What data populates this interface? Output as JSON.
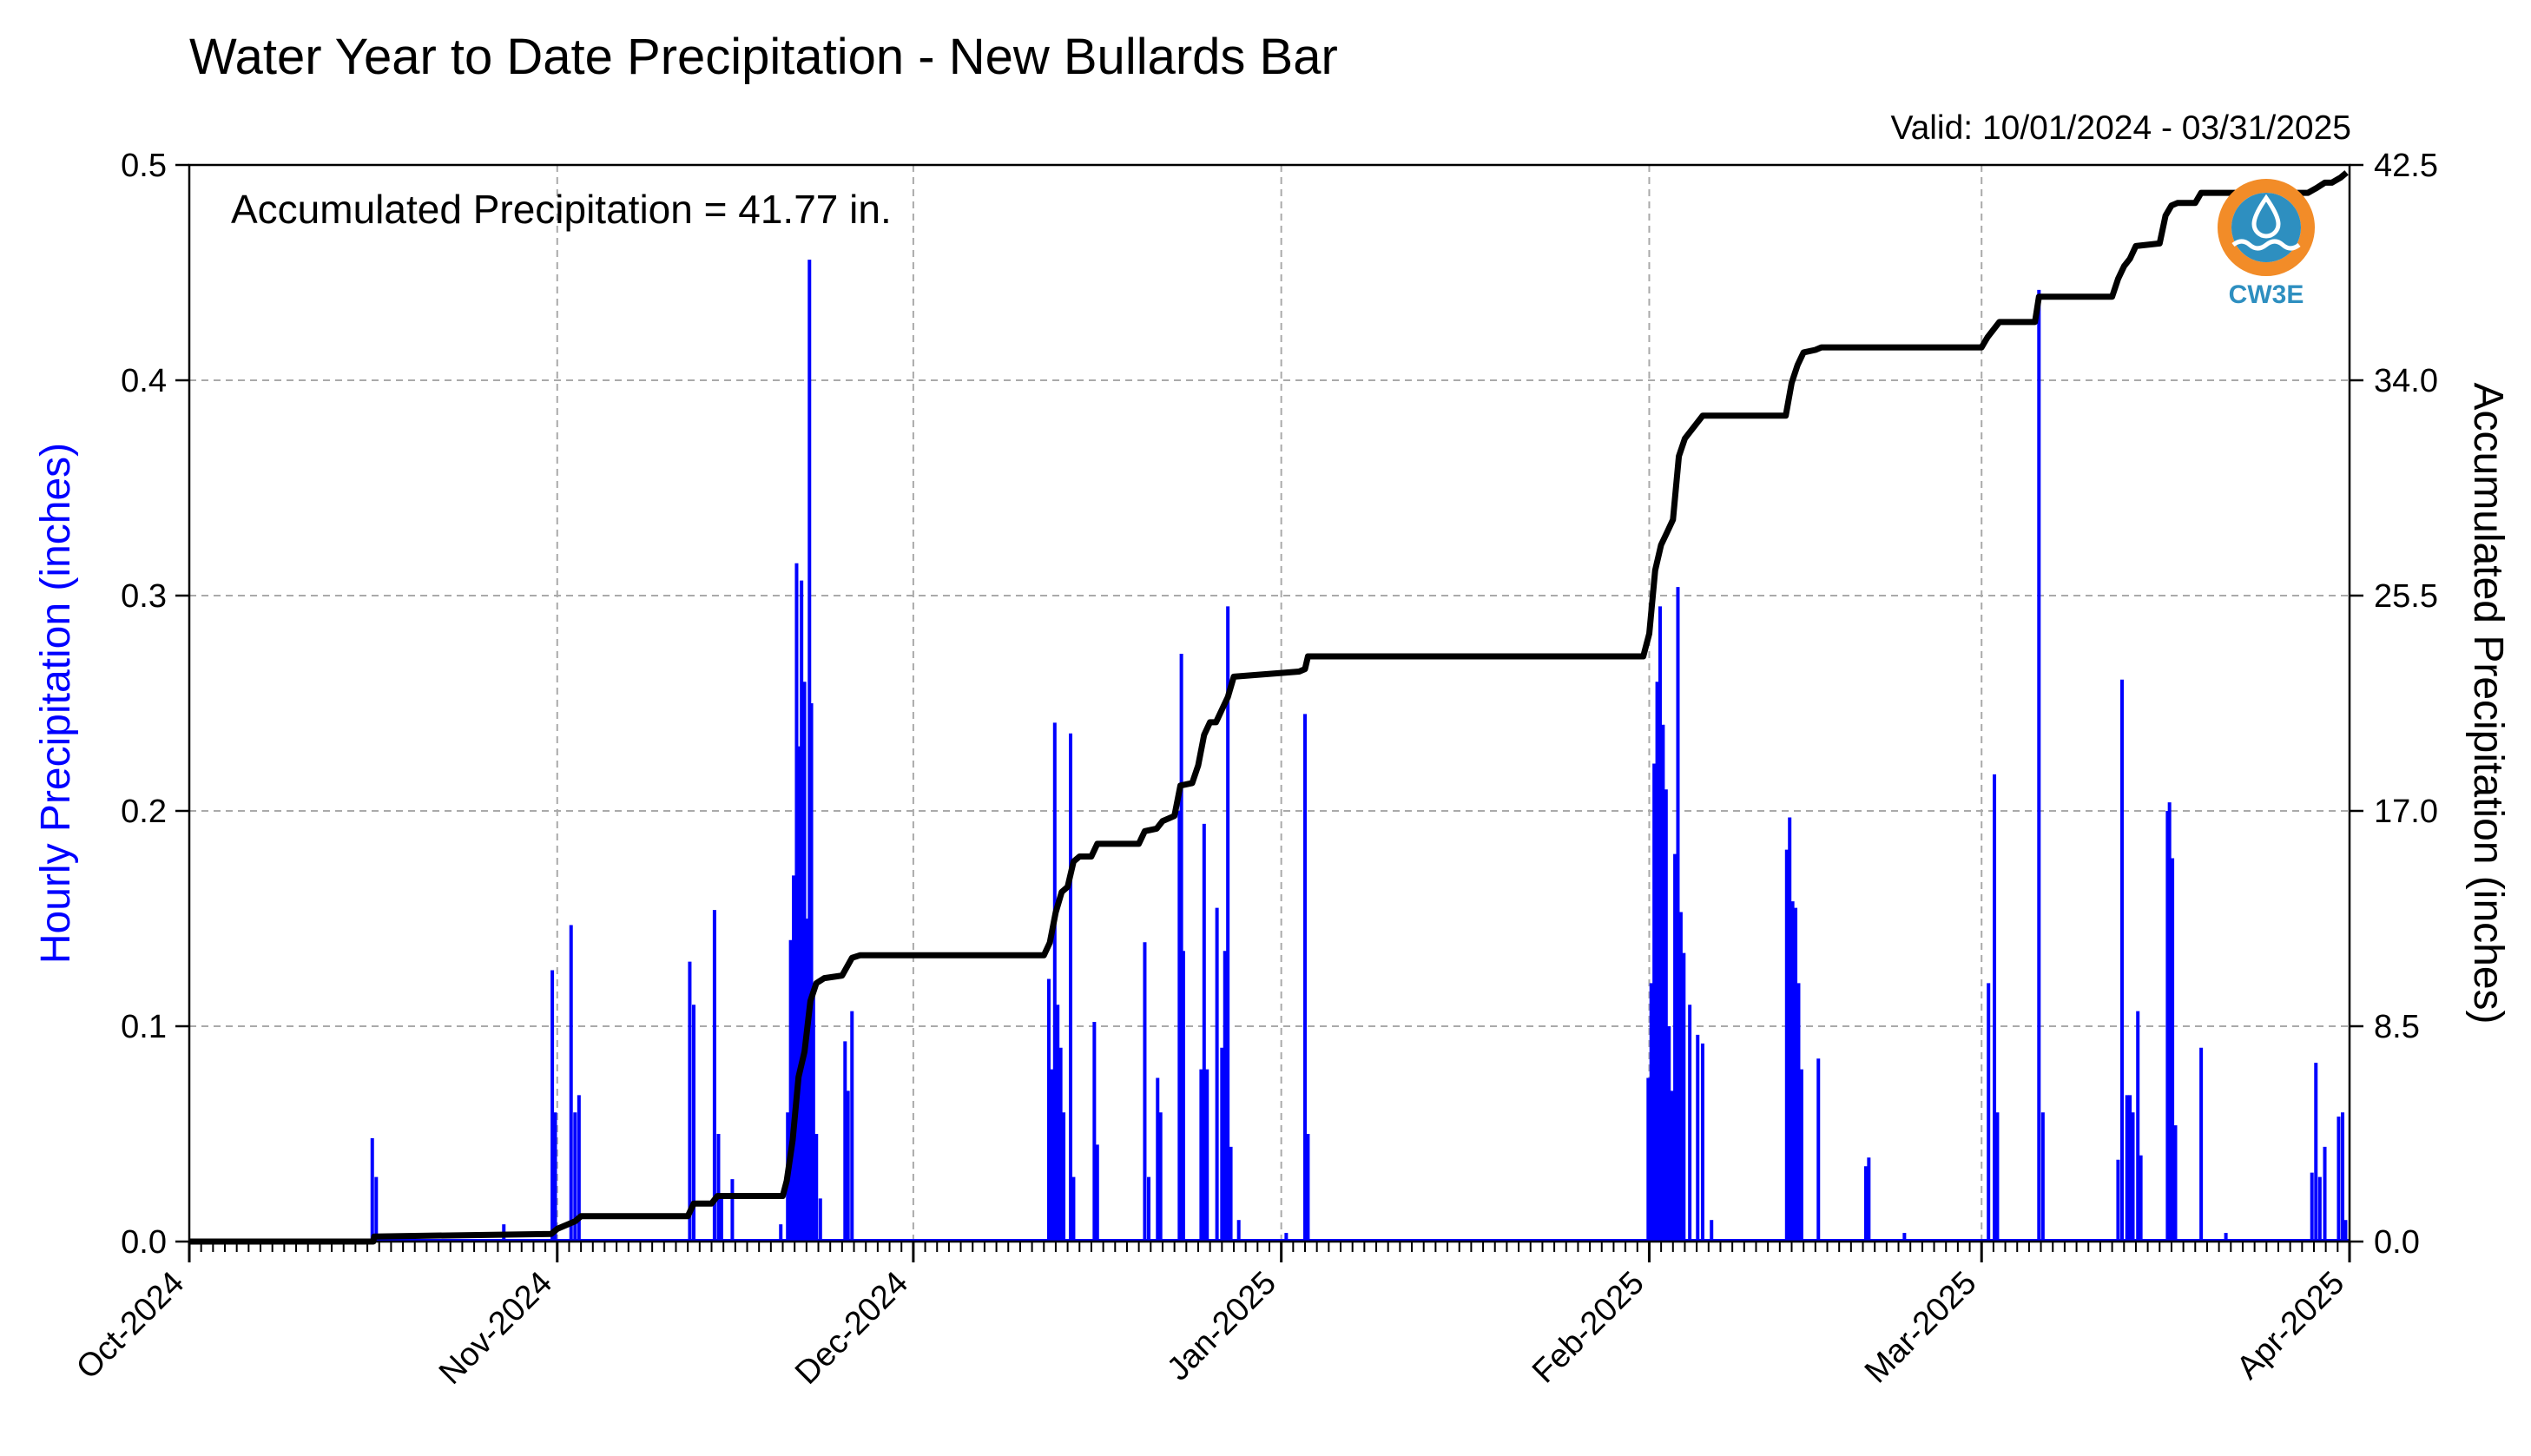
{
  "chart_data": {
    "type": "bar+line",
    "title": "Water Year to Date Precipitation - New Bullards Bar",
    "subtitle": "Valid: 10/01/2024 - 03/31/2025",
    "annotation": "Accumulated Precipitation = 41.77 in.",
    "ylabel_left": "Hourly Precipitation (inches)",
    "ylabel_right": "Accumulated Precipitation (inches)",
    "logo_text": "CW3E",
    "x_range": [
      "2024-10-01",
      "2025-04-01"
    ],
    "x_ticks": [
      {
        "date": "2024-10-01",
        "label": "Oct-2024"
      },
      {
        "date": "2024-11-01",
        "label": "Nov-2024"
      },
      {
        "date": "2024-12-01",
        "label": "Dec-2024"
      },
      {
        "date": "2025-01-01",
        "label": "Jan-2025"
      },
      {
        "date": "2025-02-01",
        "label": "Feb-2025"
      },
      {
        "date": "2025-03-01",
        "label": "Mar-2025"
      },
      {
        "date": "2025-04-01",
        "label": "Apr-2025"
      }
    ],
    "ylim_left": [
      0,
      0.5
    ],
    "yticks_left": [
      {
        "value": 0.0,
        "label": "0.0"
      },
      {
        "value": 0.1,
        "label": "0.1"
      },
      {
        "value": 0.2,
        "label": "0.2"
      },
      {
        "value": 0.3,
        "label": "0.3"
      },
      {
        "value": 0.4,
        "label": "0.4"
      },
      {
        "value": 0.5,
        "label": "0.5"
      }
    ],
    "ylim_right": [
      0,
      42.5
    ],
    "yticks_right": [
      {
        "value": 0.0,
        "label": "0.0"
      },
      {
        "value": 8.5,
        "label": "8.5"
      },
      {
        "value": 17.0,
        "label": "17.0"
      },
      {
        "value": 25.5,
        "label": "25.5"
      },
      {
        "value": 34.0,
        "label": "34.0"
      },
      {
        "value": 42.5,
        "label": "42.5"
      }
    ],
    "grid": true,
    "colors": {
      "hourly": "#0000ff",
      "accumulated": "#000000",
      "grid": "#aaaaaa",
      "logo_orange": "#f28c28",
      "logo_blue": "#2e8fc0"
    },
    "hourly_series": {
      "name": "Hourly Precipitation",
      "points": [
        [
          "2024-10-16T10:00",
          0.048
        ],
        [
          "2024-10-16T18:00",
          0.03
        ],
        [
          "2024-10-27T12:00",
          0.008
        ],
        [
          "2024-10-31T14:00",
          0.126
        ],
        [
          "2024-10-31T20:00",
          0.06
        ],
        [
          "2024-11-02T04:00",
          0.147
        ],
        [
          "2024-11-02T12:00",
          0.06
        ],
        [
          "2024-11-02T20:00",
          0.068
        ],
        [
          "2024-11-12T04:00",
          0.13
        ],
        [
          "2024-11-12T12:00",
          0.11
        ],
        [
          "2024-11-14T06:00",
          0.154
        ],
        [
          "2024-11-14T14:00",
          0.05
        ],
        [
          "2024-11-14T20:00",
          0.02
        ],
        [
          "2024-11-15T18:00",
          0.029
        ],
        [
          "2024-11-19T20:00",
          0.008
        ],
        [
          "2024-11-20T10:00",
          0.06
        ],
        [
          "2024-11-20T16:00",
          0.14
        ],
        [
          "2024-11-20T22:00",
          0.17
        ],
        [
          "2024-11-21T04:00",
          0.315
        ],
        [
          "2024-11-21T10:00",
          0.23
        ],
        [
          "2024-11-21T14:00",
          0.307
        ],
        [
          "2024-11-21T20:00",
          0.26
        ],
        [
          "2024-11-22T02:00",
          0.15
        ],
        [
          "2024-11-22T06:00",
          0.456
        ],
        [
          "2024-11-22T10:00",
          0.25
        ],
        [
          "2024-11-22T14:00",
          0.12
        ],
        [
          "2024-11-22T20:00",
          0.05
        ],
        [
          "2024-11-23T04:00",
          0.02
        ],
        [
          "2024-11-25T06:00",
          0.093
        ],
        [
          "2024-11-25T12:00",
          0.07
        ],
        [
          "2024-11-25T20:00",
          0.107
        ],
        [
          "2024-12-12T10:00",
          0.122
        ],
        [
          "2024-12-12T16:00",
          0.08
        ],
        [
          "2024-12-12T22:00",
          0.241
        ],
        [
          "2024-12-13T04:00",
          0.11
        ],
        [
          "2024-12-13T10:00",
          0.09
        ],
        [
          "2024-12-13T16:00",
          0.06
        ],
        [
          "2024-12-14T06:00",
          0.236
        ],
        [
          "2024-12-14T12:00",
          0.03
        ],
        [
          "2024-12-16T06:00",
          0.102
        ],
        [
          "2024-12-16T12:00",
          0.045
        ],
        [
          "2024-12-20T12:00",
          0.139
        ],
        [
          "2024-12-20T20:00",
          0.03
        ],
        [
          "2024-12-21T14:00",
          0.076
        ],
        [
          "2024-12-21T20:00",
          0.06
        ],
        [
          "2024-12-23T10:00",
          0.2
        ],
        [
          "2024-12-23T14:00",
          0.273
        ],
        [
          "2024-12-23T18:00",
          0.135
        ],
        [
          "2024-12-25T06:00",
          0.08
        ],
        [
          "2024-12-25T12:00",
          0.194
        ],
        [
          "2024-12-25T18:00",
          0.08
        ],
        [
          "2024-12-26T14:00",
          0.155
        ],
        [
          "2024-12-27T00:00",
          0.09
        ],
        [
          "2024-12-27T06:00",
          0.135
        ],
        [
          "2024-12-27T12:00",
          0.295
        ],
        [
          "2024-12-27T18:00",
          0.044
        ],
        [
          "2024-12-28T10:00",
          0.01
        ],
        [
          "2025-01-01T10:00",
          0.004
        ],
        [
          "2025-01-03T00:00",
          0.245
        ],
        [
          "2025-01-03T06:00",
          0.05
        ],
        [
          "2025-01-31T22:00",
          0.076
        ],
        [
          "2025-02-01T04:00",
          0.12
        ],
        [
          "2025-02-01T10:00",
          0.222
        ],
        [
          "2025-02-01T16:00",
          0.26
        ],
        [
          "2025-02-01T22:00",
          0.295
        ],
        [
          "2025-02-02T04:00",
          0.24
        ],
        [
          "2025-02-02T10:00",
          0.21
        ],
        [
          "2025-02-02T16:00",
          0.1
        ],
        [
          "2025-02-02T22:00",
          0.07
        ],
        [
          "2025-02-03T04:00",
          0.18
        ],
        [
          "2025-02-03T10:00",
          0.304
        ],
        [
          "2025-02-03T16:00",
          0.153
        ],
        [
          "2025-02-03T22:00",
          0.134
        ],
        [
          "2025-02-04T10:00",
          0.11
        ],
        [
          "2025-02-05T02:00",
          0.096
        ],
        [
          "2025-02-05T12:00",
          0.092
        ],
        [
          "2025-02-06T06:00",
          0.01
        ],
        [
          "2025-02-12T14:00",
          0.182
        ],
        [
          "2025-02-12T20:00",
          0.197
        ],
        [
          "2025-02-13T02:00",
          0.158
        ],
        [
          "2025-02-13T08:00",
          0.155
        ],
        [
          "2025-02-13T14:00",
          0.12
        ],
        [
          "2025-02-13T20:00",
          0.08
        ],
        [
          "2025-02-15T06:00",
          0.085
        ],
        [
          "2025-02-19T06:00",
          0.035
        ],
        [
          "2025-02-19T12:00",
          0.039
        ],
        [
          "2025-02-22T12:00",
          0.004
        ],
        [
          "2025-03-01T14:00",
          0.12
        ],
        [
          "2025-03-02T02:00",
          0.217
        ],
        [
          "2025-03-02T08:00",
          0.06
        ],
        [
          "2025-03-05T20:00",
          0.442
        ],
        [
          "2025-03-06T04:00",
          0.06
        ],
        [
          "2025-03-12T12:00",
          0.038
        ],
        [
          "2025-03-12T20:00",
          0.261
        ],
        [
          "2025-03-13T06:00",
          0.068
        ],
        [
          "2025-03-13T12:00",
          0.068
        ],
        [
          "2025-03-13T18:00",
          0.06
        ],
        [
          "2025-03-14T04:00",
          0.107
        ],
        [
          "2025-03-14T10:00",
          0.04
        ],
        [
          "2025-03-16T16:00",
          0.2
        ],
        [
          "2025-03-16T20:00",
          0.204
        ],
        [
          "2025-03-17T02:00",
          0.178
        ],
        [
          "2025-03-17T08:00",
          0.054
        ],
        [
          "2025-03-19T12:00",
          0.09
        ],
        [
          "2025-03-21T14:00",
          0.004
        ],
        [
          "2025-03-28T20:00",
          0.032
        ],
        [
          "2025-03-29T04:00",
          0.083
        ],
        [
          "2025-03-29T12:00",
          0.03
        ],
        [
          "2025-03-29T22:00",
          0.044
        ],
        [
          "2025-03-31T02:00",
          0.058
        ],
        [
          "2025-03-31T10:00",
          0.06
        ],
        [
          "2025-03-31T16:00",
          0.01
        ]
      ]
    },
    "accumulated_series": {
      "name": "Accumulated Precipitation",
      "points": [
        [
          "2024-10-01T00:00",
          0.0
        ],
        [
          "2024-10-16T12:00",
          0.0
        ],
        [
          "2024-10-16T14:00",
          0.2
        ],
        [
          "2024-10-31T12:00",
          0.3
        ],
        [
          "2024-11-01T00:00",
          0.5
        ],
        [
          "2024-11-02T12:00",
          0.8
        ],
        [
          "2024-11-03T00:00",
          1.0
        ],
        [
          "2024-11-12T00:00",
          1.0
        ],
        [
          "2024-11-12T12:00",
          1.5
        ],
        [
          "2024-11-14T00:00",
          1.5
        ],
        [
          "2024-11-14T12:00",
          1.8
        ],
        [
          "2024-11-20T00:00",
          1.8
        ],
        [
          "2024-11-20T08:00",
          2.4
        ],
        [
          "2024-11-20T20:00",
          4.0
        ],
        [
          "2024-11-21T08:00",
          6.5
        ],
        [
          "2024-11-21T20:00",
          7.5
        ],
        [
          "2024-11-22T08:00",
          9.5
        ],
        [
          "2024-11-22T20:00",
          10.2
        ],
        [
          "2024-11-23T12:00",
          10.4
        ],
        [
          "2024-11-25T00:00",
          10.5
        ],
        [
          "2024-11-25T20:00",
          11.2
        ],
        [
          "2024-11-26T12:00",
          11.3
        ],
        [
          "2024-12-12T00:00",
          11.3
        ],
        [
          "2024-12-12T12:00",
          11.8
        ],
        [
          "2024-12-13T00:00",
          13.0
        ],
        [
          "2024-12-13T12:00",
          13.8
        ],
        [
          "2024-12-14T00:00",
          14.0
        ],
        [
          "2024-12-14T12:00",
          15.0
        ],
        [
          "2024-12-15T00:00",
          15.2
        ],
        [
          "2024-12-16T00:00",
          15.2
        ],
        [
          "2024-12-16T12:00",
          15.7
        ],
        [
          "2024-12-20T00:00",
          15.7
        ],
        [
          "2024-12-20T12:00",
          16.2
        ],
        [
          "2024-12-21T12:00",
          16.3
        ],
        [
          "2024-12-22T00:00",
          16.6
        ],
        [
          "2024-12-23T00:00",
          16.8
        ],
        [
          "2024-12-23T12:00",
          18.0
        ],
        [
          "2024-12-24T12:00",
          18.1
        ],
        [
          "2024-12-25T00:00",
          18.8
        ],
        [
          "2024-12-25T12:00",
          20.0
        ],
        [
          "2024-12-26T00:00",
          20.5
        ],
        [
          "2024-12-26T12:00",
          20.5
        ],
        [
          "2024-12-27T00:00",
          21.0
        ],
        [
          "2024-12-27T12:00",
          21.5
        ],
        [
          "2024-12-28T00:00",
          22.3
        ],
        [
          "2025-01-02T12:00",
          22.5
        ],
        [
          "2025-01-03T00:00",
          22.6
        ],
        [
          "2025-01-03T06:00",
          23.1
        ],
        [
          "2025-01-31T12:00",
          23.1
        ],
        [
          "2025-02-01T00:00",
          24.0
        ],
        [
          "2025-02-01T12:00",
          26.5
        ],
        [
          "2025-02-02T00:00",
          27.5
        ],
        [
          "2025-02-02T12:00",
          28.0
        ],
        [
          "2025-02-03T00:00",
          28.5
        ],
        [
          "2025-02-03T12:00",
          31.0
        ],
        [
          "2025-02-04T00:00",
          31.7
        ],
        [
          "2025-02-04T12:00",
          32.0
        ],
        [
          "2025-02-05T12:00",
          32.6
        ],
        [
          "2025-02-12T12:00",
          32.6
        ],
        [
          "2025-02-13T00:00",
          33.9
        ],
        [
          "2025-02-13T12:00",
          34.6
        ],
        [
          "2025-02-14T00:00",
          35.1
        ],
        [
          "2025-02-15T00:00",
          35.2
        ],
        [
          "2025-02-15T12:00",
          35.3
        ],
        [
          "2025-03-01T00:00",
          35.3
        ],
        [
          "2025-03-01T12:00",
          35.7
        ],
        [
          "2025-03-02T12:00",
          36.3
        ],
        [
          "2025-03-05T12:00",
          36.3
        ],
        [
          "2025-03-05T20:00",
          37.3
        ],
        [
          "2025-03-12T00:00",
          37.3
        ],
        [
          "2025-03-12T12:00",
          38.0
        ],
        [
          "2025-03-13T00:00",
          38.5
        ],
        [
          "2025-03-13T12:00",
          38.8
        ],
        [
          "2025-03-14T00:00",
          39.3
        ],
        [
          "2025-03-16T00:00",
          39.4
        ],
        [
          "2025-03-16T12:00",
          40.5
        ],
        [
          "2025-03-17T00:00",
          40.9
        ],
        [
          "2025-03-17T12:00",
          41.0
        ],
        [
          "2025-03-19T00:00",
          41.0
        ],
        [
          "2025-03-19T12:00",
          41.4
        ],
        [
          "2025-03-28T12:00",
          41.4
        ],
        [
          "2025-03-29T06:00",
          41.6
        ],
        [
          "2025-03-29T22:00",
          41.8
        ],
        [
          "2025-03-30T12:00",
          41.8
        ],
        [
          "2025-03-31T06:00",
          42.0
        ],
        [
          "2025-03-31T18:00",
          42.2
        ]
      ]
    }
  }
}
